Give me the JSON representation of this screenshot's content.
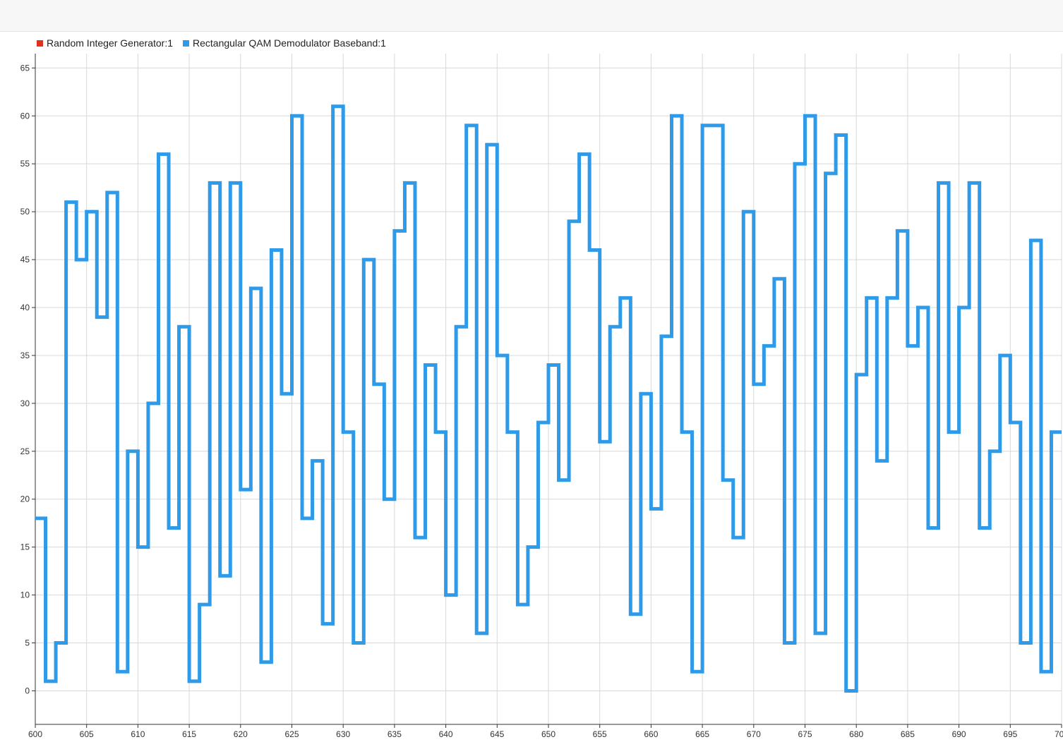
{
  "colors": {
    "series_1": "#e0311d",
    "series_2": "#2f9ae8",
    "grid": "#d8d8d8",
    "axis": "#333333"
  },
  "chart_data": {
    "type": "line",
    "step": true,
    "grid": true,
    "legend_position": "top-left",
    "xlim": [
      600,
      700
    ],
    "ylim": [
      -3.5,
      66.5
    ],
    "x_ticks": [
      600,
      605,
      610,
      615,
      620,
      625,
      630,
      635,
      640,
      645,
      650,
      655,
      660,
      665,
      670,
      675,
      680,
      685,
      690,
      695,
      700
    ],
    "y_ticks": [
      0,
      5,
      10,
      15,
      20,
      25,
      30,
      35,
      40,
      45,
      50,
      55,
      60,
      65
    ],
    "x_start": 600,
    "series": [
      {
        "name": "Random Integer Generator:1",
        "color": "#e0311d",
        "values": []
      },
      {
        "name": "Rectangular QAM Demodulator Baseband:1",
        "color": "#2f9ae8",
        "values": [
          18,
          1,
          5,
          51,
          45,
          50,
          39,
          52,
          2,
          25,
          15,
          30,
          56,
          17,
          38,
          1,
          9,
          53,
          12,
          53,
          21,
          42,
          3,
          46,
          31,
          60,
          18,
          24,
          7,
          61,
          27,
          5,
          45,
          32,
          20,
          48,
          53,
          16,
          34,
          27,
          10,
          38,
          59,
          6,
          57,
          35,
          27,
          9,
          15,
          28,
          34,
          22,
          49,
          56,
          46,
          26,
          38,
          41,
          8,
          31,
          19,
          37,
          60,
          27,
          2,
          59,
          59,
          22,
          16,
          50,
          32,
          36,
          43,
          5,
          55,
          60,
          6,
          54,
          58,
          0,
          33,
          41,
          24,
          41,
          48,
          36,
          40,
          17,
          53,
          27,
          40,
          53,
          17,
          25,
          35,
          28,
          5,
          47,
          2,
          27
        ]
      }
    ]
  }
}
